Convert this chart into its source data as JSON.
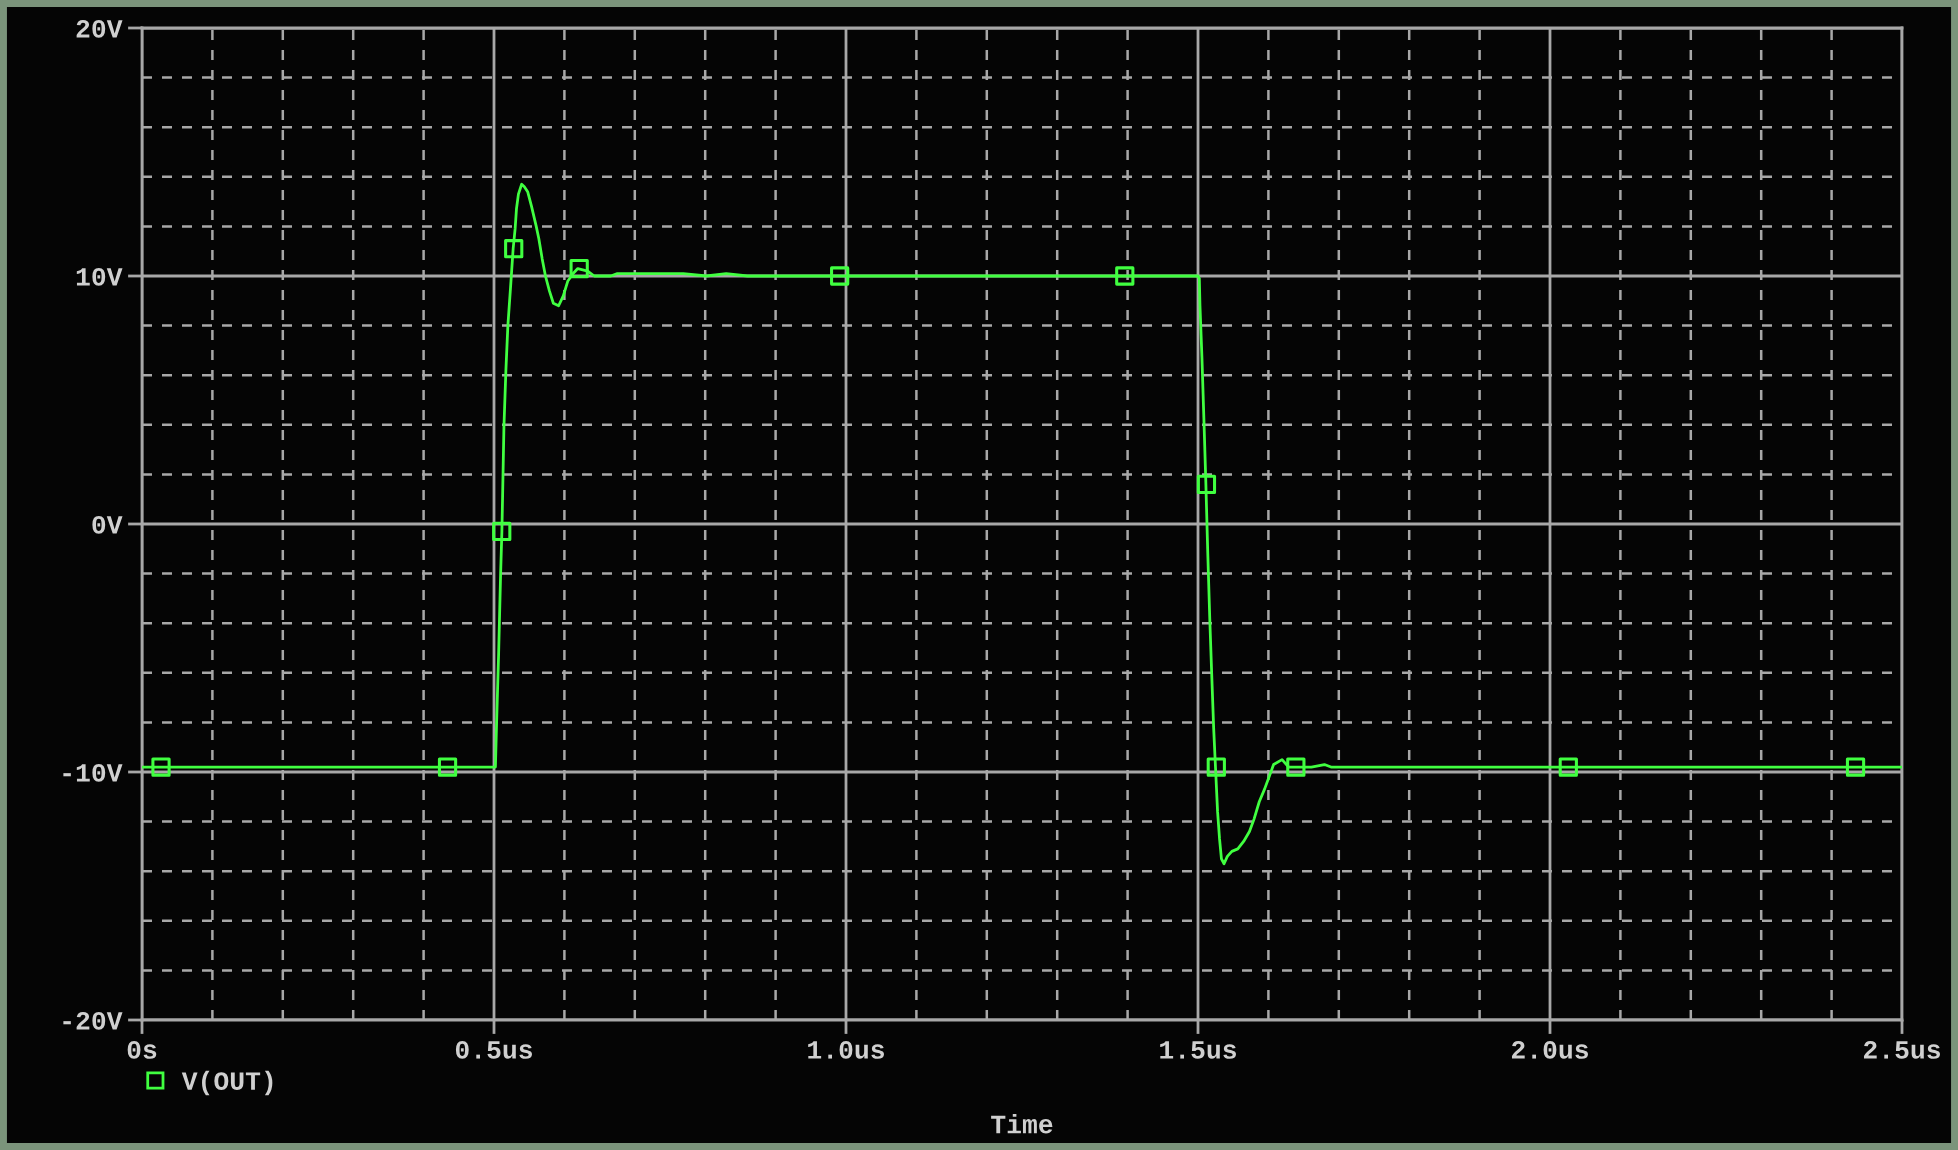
{
  "chart_data": {
    "type": "line",
    "xlabel": "Time",
    "xlim": [
      0,
      2.5
    ],
    "ylim": [
      -20,
      20
    ],
    "xticks": [
      {
        "value": 0,
        "label": "0s"
      },
      {
        "value": 0.5,
        "label": "0.5us"
      },
      {
        "value": 1.0,
        "label": "1.0us"
      },
      {
        "value": 1.5,
        "label": "1.5us"
      },
      {
        "value": 2.0,
        "label": "2.0us"
      },
      {
        "value": 2.5,
        "label": "2.5us"
      }
    ],
    "yticks": [
      {
        "value": -20,
        "label": "-20V"
      },
      {
        "value": -10,
        "label": "-10V"
      },
      {
        "value": 0,
        "label": "0V"
      },
      {
        "value": 10,
        "label": "10V"
      },
      {
        "value": 20,
        "label": "20V"
      }
    ],
    "grid": true,
    "legend": "bottom left",
    "marker": "square",
    "series": [
      {
        "name": "V(OUT)",
        "color": "#40ff40",
        "marker": "none",
        "x": [
          0,
          0.5,
          0.502,
          0.5037,
          0.5066,
          0.5094,
          0.5112,
          0.5122,
          0.5141,
          0.5169,
          0.5197,
          0.5234,
          0.5272,
          0.53,
          0.5319,
          0.5347,
          0.5393,
          0.5431,
          0.5478,
          0.5534,
          0.56,
          0.5637,
          0.5684,
          0.5731,
          0.5787,
          0.5843,
          0.5918,
          0.5984,
          0.6049,
          0.6124,
          0.619,
          0.6331,
          0.6424,
          0.6659,
          0.6752,
          0.708,
          0.7408,
          0.7689,
          0.8017,
          0.8298,
          0.86,
          1.5,
          1.5019,
          1.5028,
          1.5056,
          1.5083,
          1.5111,
          1.5139,
          1.5167,
          1.5194,
          1.5222,
          1.525,
          1.5278,
          1.5306,
          1.5333,
          1.537,
          1.5417,
          1.5481,
          1.5565,
          1.5648,
          1.5731,
          1.5796,
          1.587,
          1.5944,
          1.6009,
          1.6074,
          1.6194,
          1.6287,
          1.6426,
          1.6611,
          1.6796,
          1.6889,
          2.5
        ],
        "values": [
          -9.8,
          -9.8,
          -9.8,
          -8.0,
          -5.2,
          -2.0,
          -0.3,
          1.1,
          3.9,
          6.2,
          8.0,
          9.5,
          11.1,
          11.9,
          12.7,
          13.3,
          13.7,
          13.6,
          13.4,
          12.8,
          12.0,
          11.5,
          10.7,
          10.0,
          9.4,
          8.9,
          8.8,
          9.2,
          9.8,
          10.1,
          10.3,
          10.2,
          10.0,
          10.0,
          10.1,
          10.1,
          10.1,
          10.1,
          10.0,
          10.1,
          10.0,
          10.0,
          9.9,
          8.8,
          6.7,
          4.3,
          1.7,
          -1.2,
          -3.8,
          -6.0,
          -8.2,
          -9.9,
          -11.6,
          -12.7,
          -13.5,
          -13.7,
          -13.4,
          -13.2,
          -13.1,
          -12.8,
          -12.4,
          -11.9,
          -11.2,
          -10.7,
          -10.2,
          -9.7,
          -9.5,
          -9.8,
          -9.8,
          -9.8,
          -9.7,
          -9.8,
          -9.8
        ]
      },
      {
        "type": "scatter",
        "color": "#40ff40",
        "x": [
          0.027,
          0.434,
          0.511,
          0.528,
          0.621,
          0.991,
          1.396,
          1.512,
          1.526,
          1.639,
          2.026,
          2.434
        ],
        "values": [
          -9.8,
          -9.8,
          -0.3,
          11.1,
          10.3,
          10.0,
          10.0,
          1.6,
          -9.8,
          -9.8,
          -9.8,
          -9.8
        ]
      }
    ]
  }
}
